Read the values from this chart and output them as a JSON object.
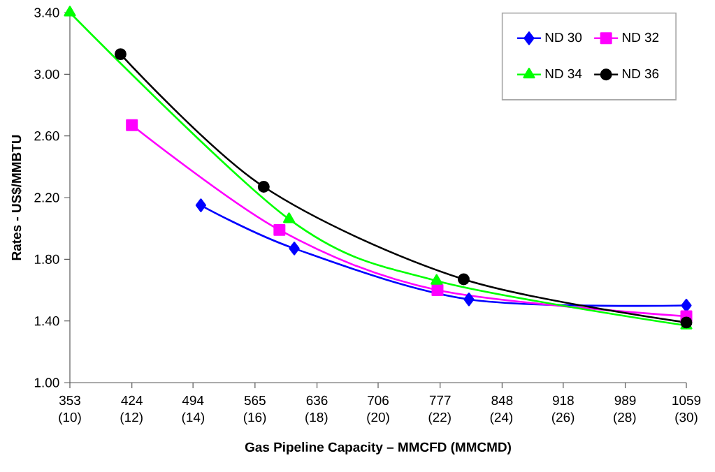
{
  "chart_data": {
    "type": "line",
    "xlabel": "Gas Pipeline Capacity – MMCFD (MMCMD)",
    "ylabel": "Rates - US$/MMBTU",
    "xlim": [
      353,
      1059
    ],
    "ylim": [
      1.0,
      3.4
    ],
    "xticks": [
      353,
      424,
      494,
      565,
      636,
      706,
      777,
      848,
      918,
      989,
      1059
    ],
    "x2lim": [
      10,
      30
    ],
    "x2ticks": [
      {
        "value": 10,
        "label": "(10)"
      },
      {
        "value": 12,
        "label": "(12)"
      },
      {
        "value": 14,
        "label": "(14)"
      },
      {
        "value": 16,
        "label": "(16)"
      },
      {
        "value": 18,
        "label": "(18)"
      },
      {
        "value": 20,
        "label": "(20)"
      },
      {
        "value": 22,
        "label": "(22)"
      },
      {
        "value": 24,
        "label": "(24)"
      },
      {
        "value": 26,
        "label": "(26)"
      },
      {
        "value": 28,
        "label": "(28)"
      },
      {
        "value": 30,
        "label": "(30)"
      }
    ],
    "yticks": [
      {
        "value": 1.0,
        "label": "1.00"
      },
      {
        "value": 1.4,
        "label": "1.40"
      },
      {
        "value": 1.8,
        "label": "1.80"
      },
      {
        "value": 2.2,
        "label": "2.20"
      },
      {
        "value": 2.6,
        "label": "2.60"
      },
      {
        "value": 3.0,
        "label": "3.00"
      },
      {
        "value": 3.4,
        "label": "3.40"
      }
    ],
    "grid": false,
    "legend": "top right",
    "series": [
      {
        "name": "ND 30",
        "color": "#0000ff",
        "marker": "diamond",
        "x": [
          503,
          610,
          810,
          1059
        ],
        "values": [
          2.15,
          1.87,
          1.54,
          1.5
        ]
      },
      {
        "name": "ND 32",
        "color": "#ff00ff",
        "marker": "square",
        "x": [
          424,
          593,
          774,
          1059
        ],
        "values": [
          2.67,
          1.99,
          1.6,
          1.43
        ]
      },
      {
        "name": "ND 34",
        "color": "#00ff00",
        "marker": "triangle",
        "x": [
          353,
          604,
          773,
          1059
        ],
        "values": [
          3.4,
          2.06,
          1.66,
          1.37
        ]
      },
      {
        "name": "ND 36",
        "color": "#000000",
        "marker": "circle",
        "x": [
          411,
          575,
          804,
          1059
        ],
        "values": [
          3.13,
          2.27,
          1.67,
          1.39
        ]
      }
    ]
  }
}
